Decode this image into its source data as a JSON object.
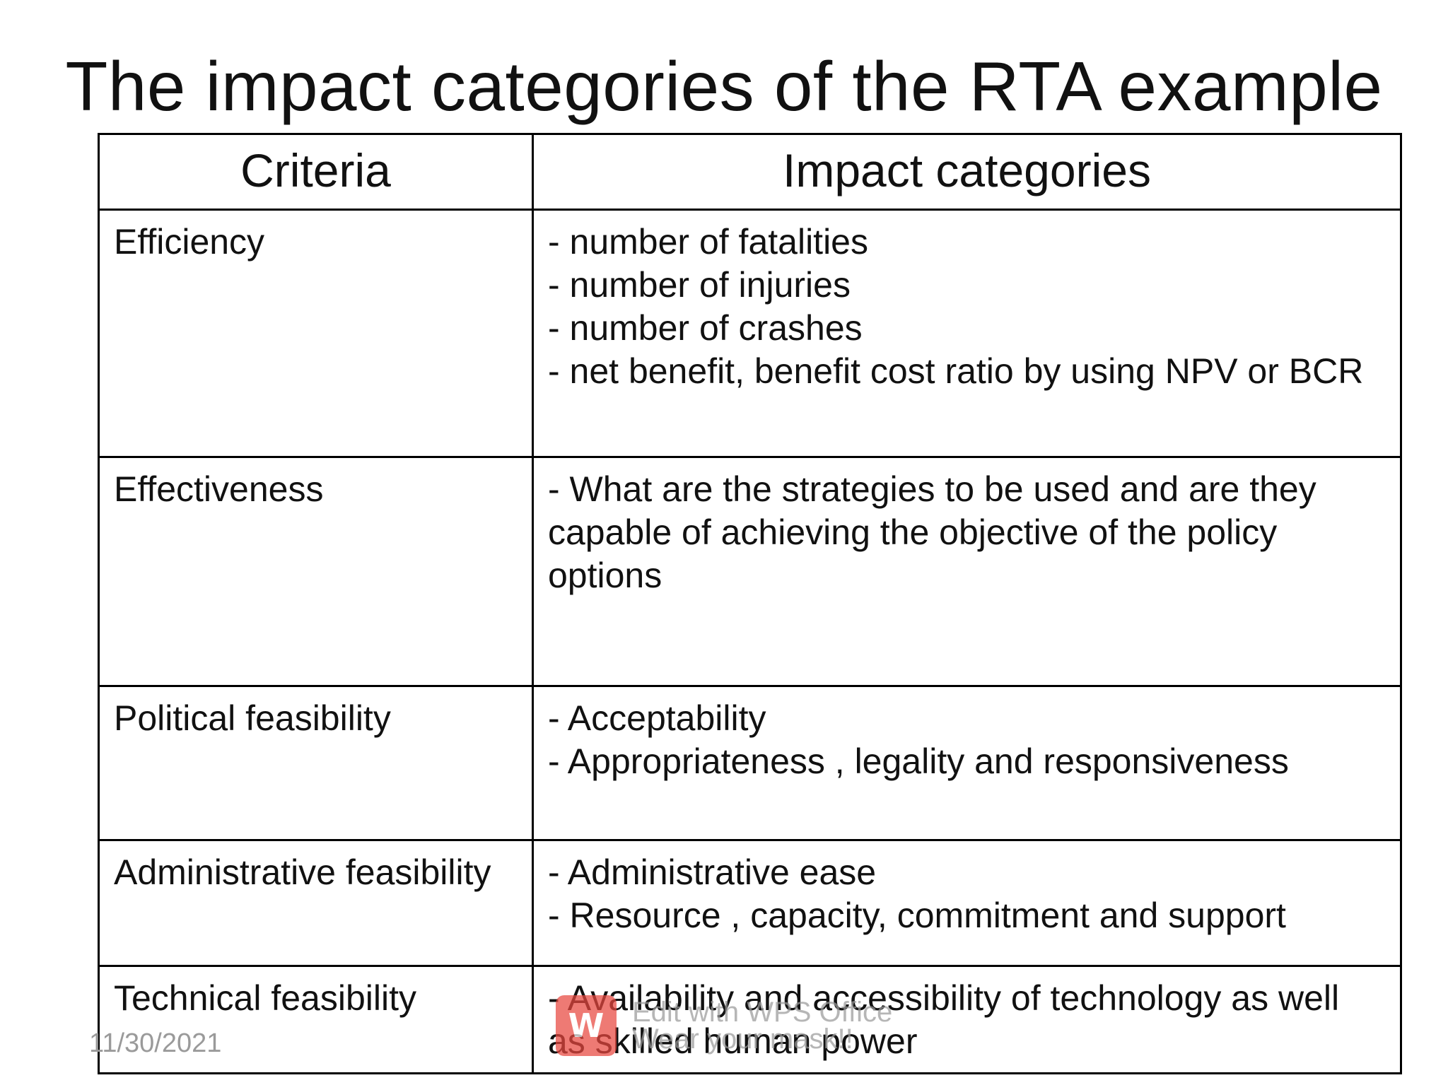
{
  "slide": {
    "title": "The impact categories of the RTA example",
    "date": "11/30/2021"
  },
  "table": {
    "headers": {
      "criteria": "Criteria",
      "impact": "Impact categories"
    },
    "rows": [
      {
        "criteria": "Efficiency",
        "impacts": [
          "-  number of fatalities",
          "-  number of injuries",
          "-  number of crashes",
          "- net benefit, benefit cost ratio by using NPV or BCR"
        ]
      },
      {
        "criteria": "Effectiveness",
        "impacts": [
          "- What are the strategies to be used and are they capable of achieving the objective of the policy options"
        ]
      },
      {
        "criteria": "Political feasibility",
        "impacts": [
          "- Acceptability",
          "- Appropriateness , legality and responsiveness"
        ]
      },
      {
        "criteria": "Administrative feasibility",
        "impacts": [
          "- Administrative ease",
          "- Resource , capacity, commitment and support"
        ]
      },
      {
        "criteria": "Technical feasibility",
        "impacts": [
          "- Availability and accessibility of technology as well as skilled human power"
        ]
      }
    ]
  },
  "watermark": {
    "icon": "wps-office-logo-icon",
    "line1": "Edit with WPS Office",
    "line2": "Wear your mask!!",
    "color": "#e8473f"
  }
}
